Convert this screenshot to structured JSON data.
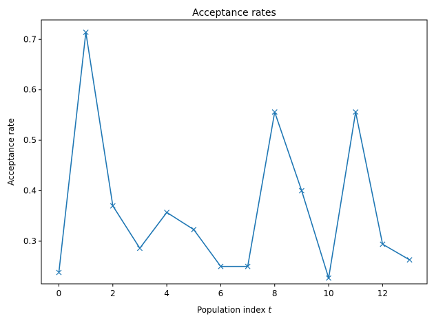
{
  "chart_data": {
    "type": "line",
    "title": "Acceptance rates",
    "xlabel_prefix": "Population index ",
    "xlabel_var": "t",
    "ylabel": "Acceptance rate",
    "xlim": [
      -0.65,
      13.65
    ],
    "ylim": [
      0.2155,
      0.7385
    ],
    "xticks": [
      0,
      2,
      4,
      6,
      8,
      10,
      12
    ],
    "xtick_labels": [
      "0",
      "2",
      "4",
      "6",
      "8",
      "10",
      "12"
    ],
    "yticks": [
      0.3,
      0.4,
      0.5,
      0.6,
      0.7
    ],
    "ytick_labels": [
      "0.3",
      "0.4",
      "0.5",
      "0.6",
      "0.7"
    ],
    "grid": false,
    "series": [
      {
        "marker": "x",
        "color": "#1f77b4",
        "x": [
          0,
          1,
          2,
          3,
          4,
          5,
          6,
          7,
          8,
          9,
          10,
          11,
          12,
          13
        ],
        "y": [
          0.238,
          0.714,
          0.37,
          0.286,
          0.357,
          0.323,
          0.25,
          0.25,
          0.556,
          0.4,
          0.227,
          0.556,
          0.294,
          0.263
        ]
      }
    ]
  }
}
